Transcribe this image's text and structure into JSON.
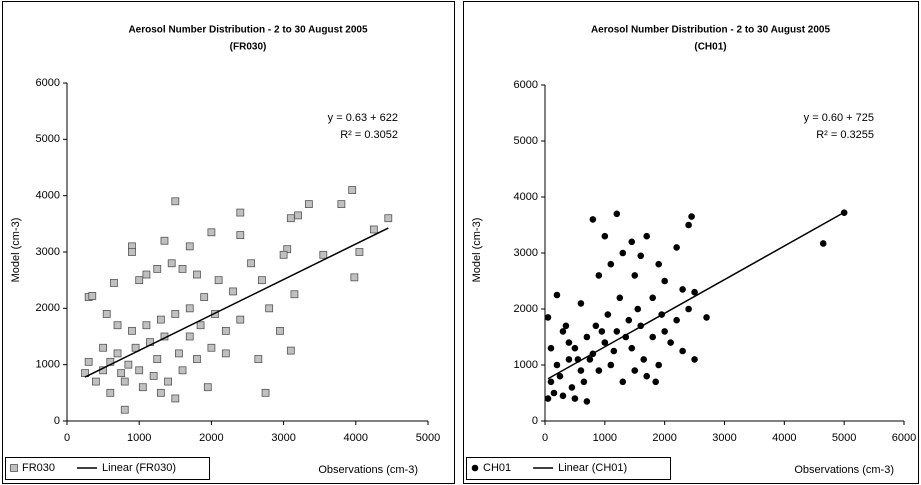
{
  "chart_data": [
    {
      "type": "scatter",
      "title": "Aerosol Number Distribution - 2 to 30 August 2005",
      "subtitle": "(FR030)",
      "x_label": "Observations (cm-3)",
      "y_label": "Model (cm-3)",
      "annotations": [
        "y = 0.63 + 622",
        "R² = 0.3052"
      ],
      "xlim": [
        0,
        5000
      ],
      "xticks": [
        0,
        1000,
        2000,
        3000,
        4000,
        5000
      ],
      "ylim": [
        0,
        6000
      ],
      "yticks": [
        0,
        1000,
        2000,
        3000,
        4000,
        5000,
        6000
      ],
      "grid": false,
      "series": [
        {
          "name": "FR030",
          "color": "#c0c0c0",
          "marker": "square",
          "x": [
            3950,
            3800,
            3350,
            3200,
            3100,
            2400,
            1500,
            4450,
            4250,
            4050,
            3980,
            3550,
            3050,
            3000,
            3150,
            3100,
            2750,
            800,
            300,
            350,
            900,
            900,
            1350,
            1700,
            2000,
            2400,
            2550,
            2700,
            2800,
            2650,
            2950,
            2200,
            1950,
            1500,
            600,
            400,
            300,
            250,
            500,
            700,
            550,
            650,
            1000,
            1100,
            1250,
            1450,
            1600,
            1800,
            2100,
            2300,
            1900,
            1700,
            1500,
            1300,
            1100,
            900,
            700,
            850,
            1000,
            1200,
            1400,
            1600,
            1800,
            2000,
            2200,
            2400,
            1150,
            1350,
            950,
            750,
            600,
            1050,
            1300,
            1700,
            2050,
            1250,
            800,
            500,
            1550,
            1850
          ],
          "values": [
            4100,
            3850,
            3850,
            3650,
            3600,
            3700,
            3900,
            3600,
            3400,
            3000,
            2550,
            2950,
            3050,
            2950,
            2250,
            1250,
            500,
            200,
            2200,
            2220,
            3100,
            3000,
            3200,
            3100,
            3350,
            3300,
            2800,
            2500,
            2000,
            1100,
            1600,
            1200,
            600,
            400,
            500,
            700,
            1050,
            850,
            1300,
            1700,
            1900,
            2450,
            2500,
            2600,
            2700,
            2800,
            2700,
            2600,
            2500,
            2300,
            2200,
            2000,
            1900,
            1800,
            1700,
            1600,
            1200,
            1000,
            900,
            800,
            700,
            900,
            1100,
            1300,
            1600,
            1800,
            1400,
            1500,
            1300,
            850,
            1050,
            600,
            500,
            1500,
            1900,
            1100,
            700,
            900,
            1200,
            1700
          ]
        },
        {
          "name": "Linear (FR030)",
          "color": "#000000",
          "style": "line",
          "x": [
            250,
            4450
          ],
          "values": [
            779.5,
            3425.5
          ]
        }
      ]
    },
    {
      "type": "scatter",
      "title": "Aerosol Number Distribution - 2 to 30 August 2005",
      "subtitle": "(CH01)",
      "x_label": "Observations (cm-3)",
      "y_label": "Model (cm-3)",
      "annotations": [
        "y = 0.60 + 725",
        "R² = 0.3255"
      ],
      "xlim": [
        0,
        6000
      ],
      "xticks": [
        0,
        1000,
        2000,
        3000,
        4000,
        5000,
        6000
      ],
      "ylim": [
        0,
        6000
      ],
      "yticks": [
        0,
        1000,
        2000,
        3000,
        4000,
        5000,
        6000
      ],
      "grid": false,
      "series": [
        {
          "name": "CH01",
          "color": "#000000",
          "marker": "circle",
          "x": [
            5000,
            4650,
            2450,
            2400,
            1200,
            800,
            1000,
            1450,
            1700,
            2200,
            1300,
            1600,
            1900,
            2300,
            2500,
            2700,
            2500,
            2300,
            2000,
            1800,
            1500,
            1100,
            900,
            600,
            200,
            50,
            100,
            300,
            400,
            250,
            150,
            500,
            700,
            600,
            800,
            1000,
            1200,
            1400,
            1600,
            1800,
            2000,
            2200,
            1900,
            1700,
            1500,
            1300,
            1100,
            900,
            700,
            500,
            350,
            450,
            650,
            850,
            1050,
            1250,
            1450,
            1650,
            1850,
            50,
            100,
            200,
            300,
            400,
            550,
            750,
            950,
            1150,
            1350,
            1550,
            1950,
            2100,
            2400
          ],
          "values": [
            3720,
            3170,
            3650,
            3500,
            3700,
            3600,
            3300,
            3200,
            3300,
            3100,
            3000,
            2950,
            2800,
            2350,
            2300,
            1850,
            1100,
            1250,
            2500,
            2200,
            2600,
            2800,
            2600,
            2100,
            2250,
            1850,
            1300,
            1600,
            1100,
            800,
            500,
            400,
            350,
            900,
            1200,
            1400,
            1600,
            1800,
            1700,
            1500,
            1600,
            1800,
            1000,
            800,
            900,
            700,
            1000,
            900,
            1500,
            1300,
            1700,
            600,
            700,
            1700,
            1900,
            2200,
            1300,
            1100,
            700,
            400,
            700,
            1000,
            450,
            1400,
            1100,
            1100,
            1600,
            1250,
            1500,
            2000,
            1900,
            1400,
            2000
          ]
        },
        {
          "name": "Linear (CH01)",
          "color": "#000000",
          "style": "line",
          "x": [
            50,
            5000
          ],
          "values": [
            755,
            3725
          ]
        }
      ]
    }
  ]
}
